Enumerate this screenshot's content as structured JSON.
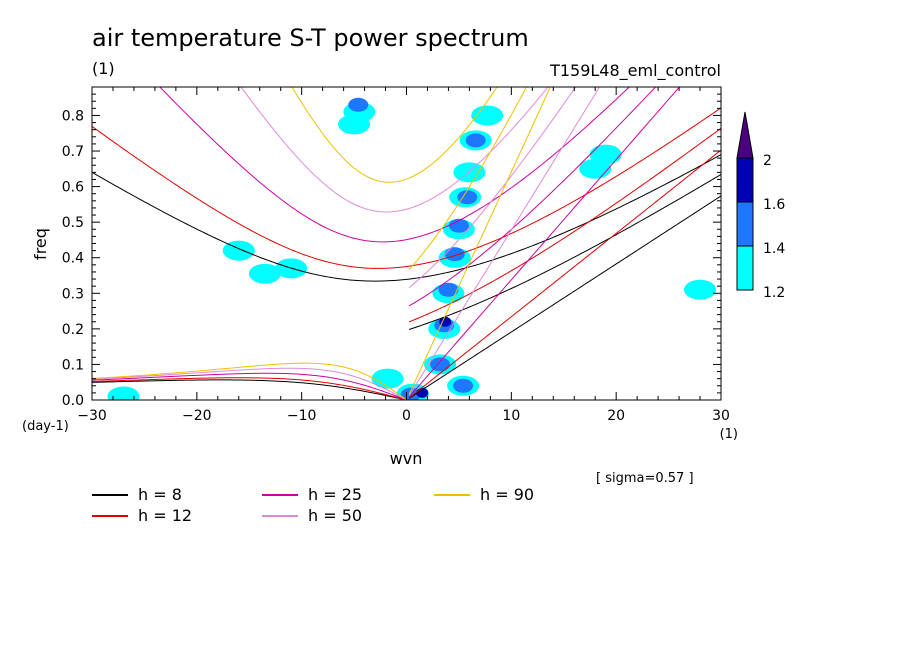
{
  "chart_data": {
    "type": "contour",
    "title": "air temperature S-T power spectrum",
    "subtitle_left": "(1)",
    "subtitle_right": "T159L48_eml_control",
    "xlabel": "wvn",
    "ylabel": "freq",
    "x_unit": "(1)",
    "y_unit": "(day-1)",
    "note": "[ sigma=0.57 ]",
    "xlim": [
      -30,
      30
    ],
    "ylim": [
      0,
      0.88
    ],
    "x_ticks": [
      "-30",
      "-20",
      "-10",
      "0",
      "10",
      "20",
      "30"
    ],
    "y_ticks": [
      "0.0",
      "0.1",
      "0.2",
      "0.3",
      "0.4",
      "0.5",
      "0.6",
      "0.7",
      "0.8"
    ],
    "colorbar": {
      "levels": [
        "1.2",
        "1.4",
        "1.6",
        "2"
      ],
      "colors": [
        "#00ffff",
        "#1e78ff",
        "#0000b4",
        "#4b0082"
      ]
    },
    "contour_blobs": [
      {
        "level": 1,
        "x": 0.6,
        "y": 0.018
      },
      {
        "level": 2,
        "x": 0.4,
        "y": 0.015
      },
      {
        "level": 3,
        "x": 1.5,
        "y": 0.02
      },
      {
        "level": 1,
        "x": 3.2,
        "y": 0.1
      },
      {
        "level": 2,
        "x": 3.2,
        "y": 0.1
      },
      {
        "level": 1,
        "x": 3.6,
        "y": 0.2
      },
      {
        "level": 2,
        "x": 3.6,
        "y": 0.21
      },
      {
        "level": 3,
        "x": 3.7,
        "y": 0.22
      },
      {
        "level": 1,
        "x": 4.0,
        "y": 0.3
      },
      {
        "level": 2,
        "x": 4.0,
        "y": 0.31
      },
      {
        "level": 1,
        "x": 4.6,
        "y": 0.4
      },
      {
        "level": 2,
        "x": 4.6,
        "y": 0.41
      },
      {
        "level": 1,
        "x": 5.0,
        "y": 0.48
      },
      {
        "level": 2,
        "x": 5.0,
        "y": 0.49
      },
      {
        "level": 1,
        "x": 5.6,
        "y": 0.57
      },
      {
        "level": 2,
        "x": 5.8,
        "y": 0.57
      },
      {
        "level": 1,
        "x": 6.0,
        "y": 0.64
      },
      {
        "level": 1,
        "x": 6.6,
        "y": 0.73
      },
      {
        "level": 2,
        "x": 6.6,
        "y": 0.73
      },
      {
        "level": 1,
        "x": 7.7,
        "y": 0.8
      },
      {
        "level": 1,
        "x": -4.5,
        "y": 0.81
      },
      {
        "level": 2,
        "x": -4.6,
        "y": 0.83
      },
      {
        "level": 1,
        "x": -5.0,
        "y": 0.775
      },
      {
        "level": 1,
        "x": 5.4,
        "y": 0.04
      },
      {
        "level": 2,
        "x": 5.4,
        "y": 0.04
      },
      {
        "level": 1,
        "x": -1.8,
        "y": 0.06
      },
      {
        "level": 1,
        "x": -27,
        "y": 0.01
      },
      {
        "level": 1,
        "x": -13.5,
        "y": 0.355
      },
      {
        "level": 1,
        "x": -11,
        "y": 0.37
      },
      {
        "level": 1,
        "x": -16,
        "y": 0.42
      },
      {
        "level": 1,
        "x": 19,
        "y": 0.69
      },
      {
        "level": 1,
        "x": 18,
        "y": 0.65
      },
      {
        "level": 1,
        "x": 28,
        "y": 0.31
      }
    ],
    "series": [
      {
        "name": "h = 8",
        "h": 8,
        "color": "#000000"
      },
      {
        "name": "h = 12",
        "h": 12,
        "color": "#e00000"
      },
      {
        "name": "h = 25",
        "h": 25,
        "color": "#d000a0"
      },
      {
        "name": "h = 50",
        "h": 50,
        "color": "#e08ad8"
      },
      {
        "name": "h = 90",
        "h": 90,
        "color": "#f0c000"
      }
    ],
    "legend_position": "bottom"
  }
}
